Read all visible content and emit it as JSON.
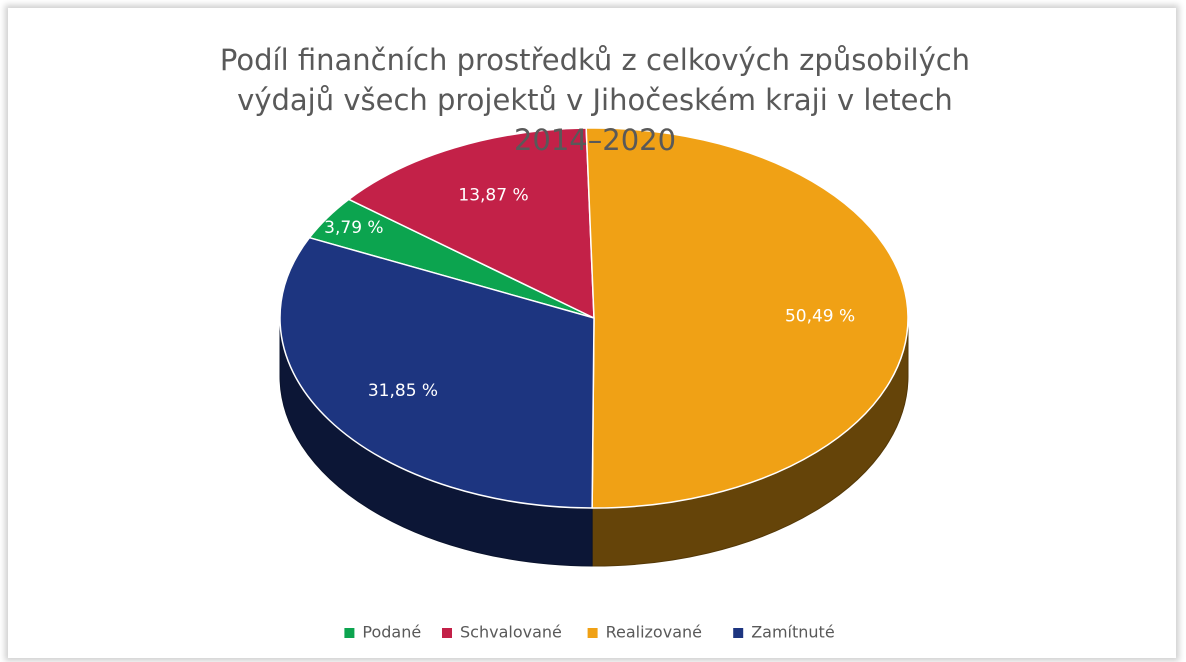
{
  "chart_data": {
    "type": "pie3d",
    "title": "Podíl finančních prostředků z celkových způsobilých výdajů všech projektů v Jihočeském kraji v letech 2014–2020",
    "categories": [
      "Podané",
      "Schvalované",
      "Realizované",
      "Zamítnuté"
    ],
    "values": [
      3.79,
      13.87,
      50.49,
      31.85
    ],
    "value_labels": [
      "3,79 %",
      "13,87 %",
      "50,49 %",
      "31,85 %"
    ],
    "colors": [
      "#0ca44f",
      "#c32148",
      "#f0a115",
      "#1d3580"
    ],
    "legend": "bottom"
  }
}
